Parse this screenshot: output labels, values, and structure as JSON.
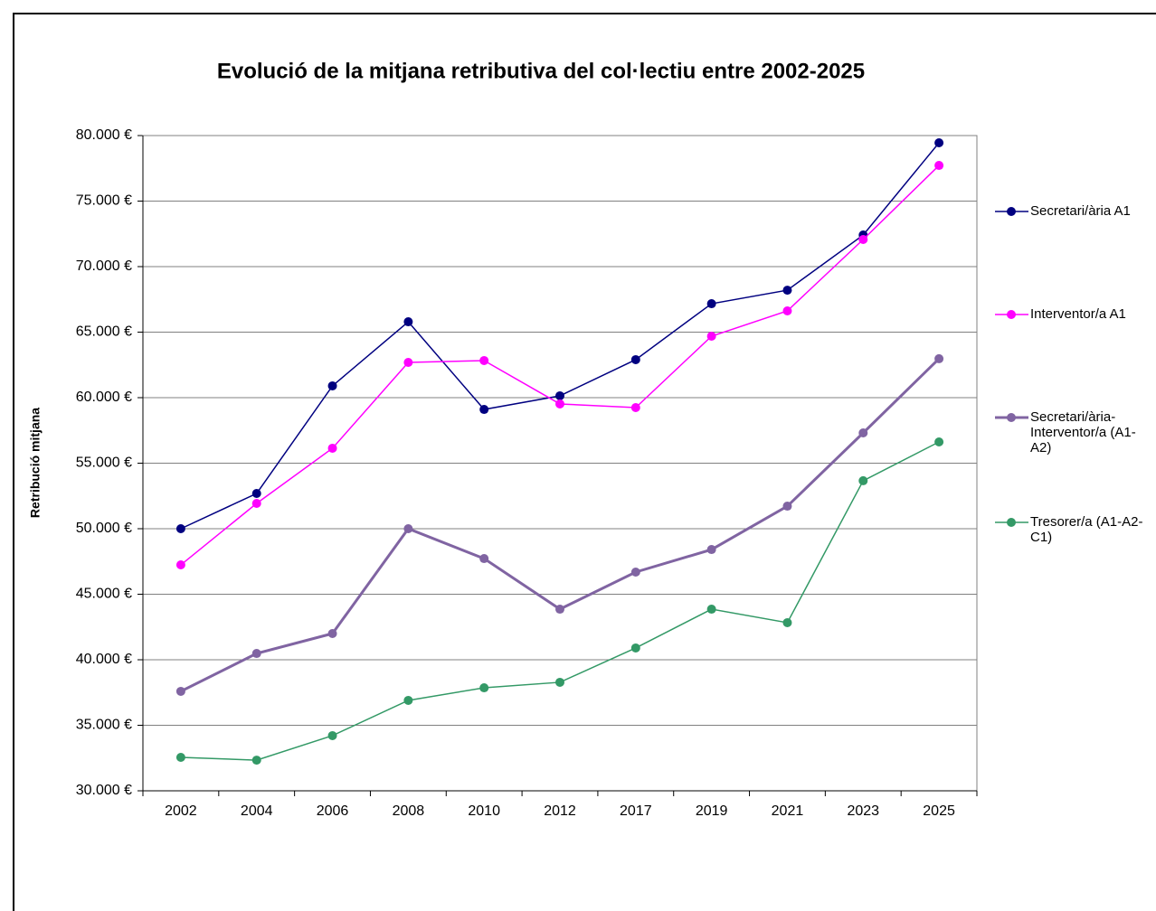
{
  "chart_data": {
    "type": "line",
    "title": "Evolució de la mitjana retributiva del col·lectiu entre 2002-2025",
    "y_label": "Retribució mitjana",
    "categories": [
      "2002",
      "2004",
      "2006",
      "2008",
      "2010",
      "2012",
      "2017",
      "2019",
      "2021",
      "2023",
      "2025"
    ],
    "series": [
      {
        "name": "Secretari/ària A1",
        "color": "#000080",
        "values": [
          50000,
          52690,
          60900,
          65790,
          59100,
          60140,
          62900,
          67170,
          68200,
          72410,
          79450
        ]
      },
      {
        "name": "Interventor/a A1",
        "color": "#ff00ff",
        "values": [
          47240,
          51930,
          56140,
          62690,
          62830,
          59520,
          59240,
          64690,
          66620,
          72070,
          77720
        ]
      },
      {
        "name": "Secretari/ària-Interventor/a (A1-A2)",
        "color": "#8064a2",
        "values": [
          37590,
          40480,
          42000,
          50000,
          47720,
          43860,
          46690,
          48410,
          51720,
          57310,
          62970
        ]
      },
      {
        "name": "Tresorer/a (A1-A2-C1)",
        "color": "#339966",
        "values": [
          32550,
          32340,
          34210,
          36900,
          37860,
          38280,
          40900,
          43860,
          42830,
          53660,
          56620
        ]
      }
    ],
    "ylim": [
      30000,
      80000
    ],
    "yticks": [
      {
        "value": 30000,
        "label": "30.000 €"
      },
      {
        "value": 35000,
        "label": "35.000 €"
      },
      {
        "value": 40000,
        "label": "40.000 €"
      },
      {
        "value": 45000,
        "label": "45.000 €"
      },
      {
        "value": 50000,
        "label": "50.000 €"
      },
      {
        "value": 55000,
        "label": "55.000 €"
      },
      {
        "value": 60000,
        "label": "60.000 €"
      },
      {
        "value": 65000,
        "label": "65.000 €"
      },
      {
        "value": 70000,
        "label": "70.000 €"
      },
      {
        "value": 75000,
        "label": "75.000 €"
      },
      {
        "value": 80000,
        "label": "80.000 €"
      }
    ],
    "grid": true,
    "legend": "right"
  }
}
